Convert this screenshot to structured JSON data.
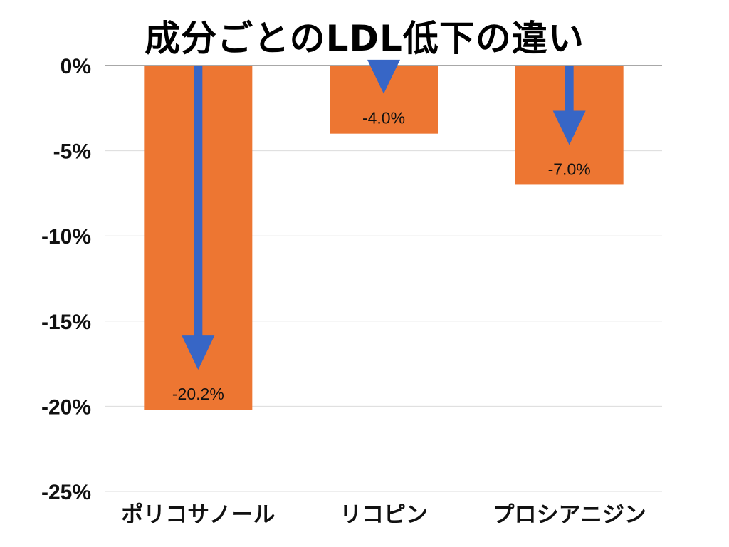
{
  "chart_data": {
    "type": "bar",
    "title": "成分ごとのLDL低下の違い",
    "xlabel": "",
    "ylabel": "",
    "categories": [
      "ポリコサノール",
      "リコピン",
      "プロシアニジン"
    ],
    "values": [
      -20.2,
      -4.0,
      -7.0
    ],
    "data_labels": [
      "-20.2%",
      "-4.0%",
      "-7.0%"
    ],
    "yticks": [
      0,
      -5,
      -10,
      -15,
      -20,
      -25
    ],
    "ytick_labels": [
      "0%",
      "-5%",
      "-10%",
      "-15%",
      "-20%",
      "-25%"
    ],
    "ylim": [
      -25,
      0
    ],
    "grid": true,
    "legend": "none",
    "colors": {
      "bar": "#ED7632",
      "arrow": "#3766C6",
      "grid": "#DCDCDC",
      "zero_line": "#8C8C8C"
    },
    "annotations": "downward arrow inside each bar from 0% to its value"
  }
}
